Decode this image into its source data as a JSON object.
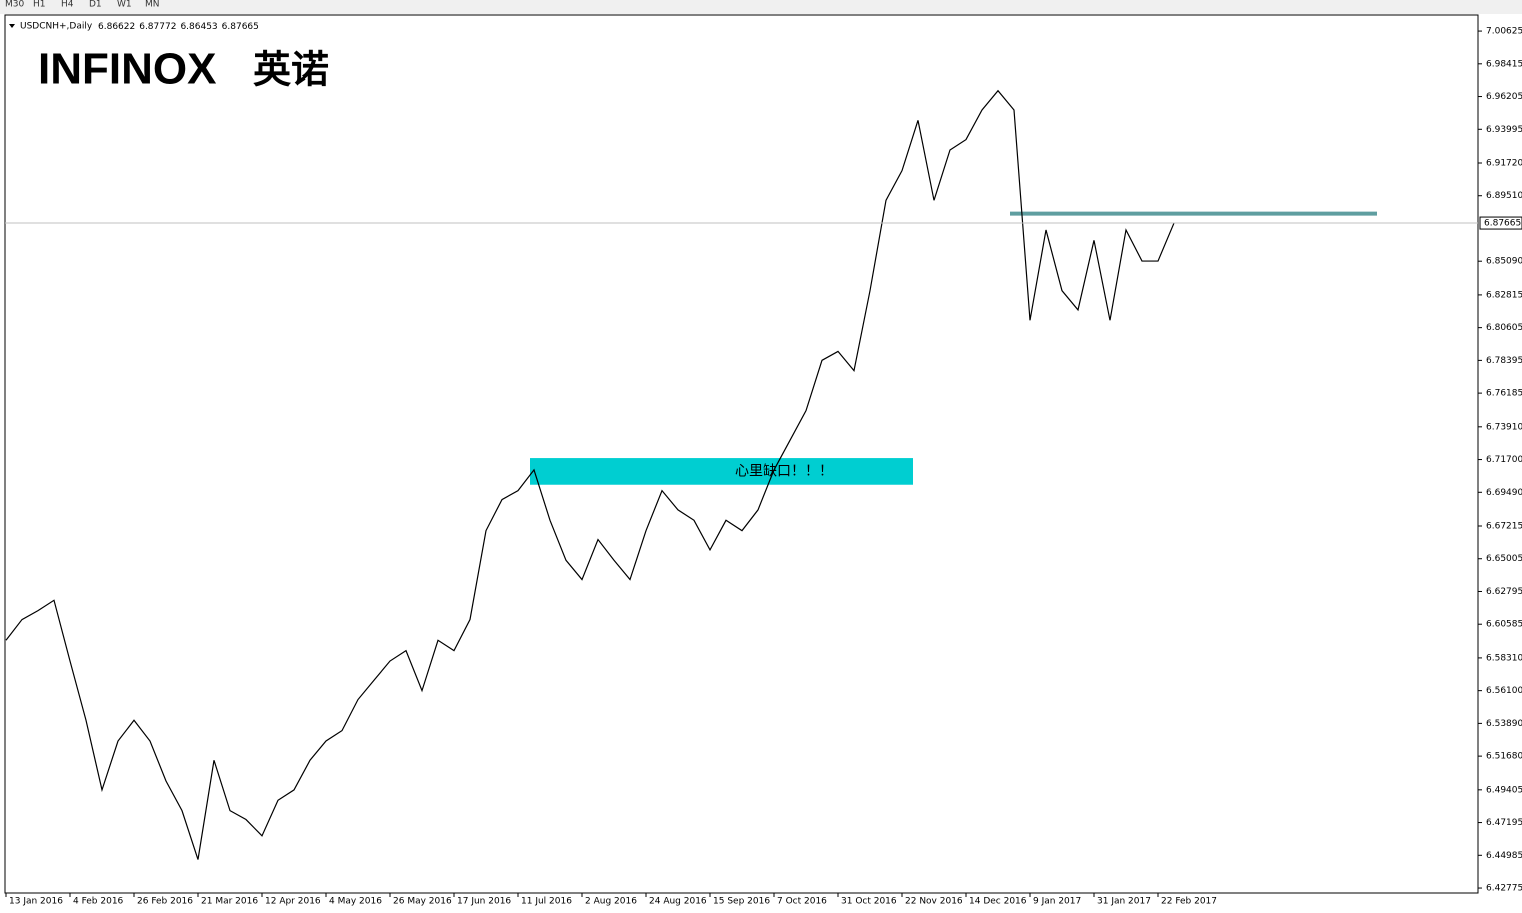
{
  "tabs": [
    "M30",
    "H1",
    "H4",
    "D1",
    "W1",
    "MN"
  ],
  "logo": {
    "brand": "INFINOX",
    "chinese": "英诺"
  },
  "chart_data": {
    "type": "line",
    "title": "USDCNH+,Daily",
    "ohlc": [
      6.86622,
      6.87772,
      6.86453,
      6.87665
    ],
    "categories": [
      "13 Jan 2016",
      null,
      null,
      null,
      "4 Feb 2016",
      null,
      null,
      null,
      "26 Feb 2016",
      null,
      null,
      null,
      "21 Mar 2016",
      null,
      null,
      null,
      "12 Apr 2016",
      null,
      null,
      null,
      "4 May 2016",
      null,
      null,
      null,
      "26 May 2016",
      null,
      null,
      null,
      "17 Jun 2016",
      null,
      null,
      null,
      "11 Jul 2016",
      null,
      null,
      null,
      "2 Aug 2016",
      null,
      null,
      null,
      "24 Aug 2016",
      null,
      null,
      null,
      "15 Sep 2016",
      null,
      null,
      null,
      "7 Oct 2016",
      null,
      null,
      null,
      "31 Oct 2016",
      null,
      null,
      null,
      "22 Nov 2016",
      null,
      null,
      null,
      "14 Dec 2016",
      null,
      null,
      null,
      "9 Jan 2017",
      null,
      null,
      null,
      "31 Jan 2017",
      null,
      null,
      null,
      "22 Feb 2017",
      null
    ],
    "series": [
      {
        "color": "#000000",
        "values": [
          6.595,
          6.609,
          6.615,
          6.622,
          6.581,
          6.541,
          6.494,
          6.527,
          6.541,
          6.527,
          6.5,
          6.48,
          6.447,
          6.514,
          6.48,
          6.474,
          6.463,
          6.487,
          6.494,
          6.514,
          6.527,
          6.534,
          6.555,
          6.568,
          6.581,
          6.588,
          6.561,
          6.595,
          6.588,
          6.609,
          6.669,
          6.69,
          6.696,
          6.71,
          6.676,
          6.649,
          6.636,
          6.663,
          6.649,
          6.636,
          6.669,
          6.696,
          6.683,
          6.676,
          6.656,
          6.676,
          6.669,
          6.683,
          6.71,
          6.73,
          6.75,
          6.784,
          6.79,
          6.777,
          6.831,
          6.892,
          6.912,
          6.946,
          6.892,
          6.926,
          6.933,
          6.953,
          6.966,
          6.953,
          6.811,
          6.872,
          6.831,
          6.818,
          6.865,
          6.811,
          6.872,
          6.851,
          6.851,
          6.87665
        ]
      }
    ],
    "zone": {
      "label": "心里缺口！！！",
      "ylim": [
        6.7,
        6.718
      ],
      "color": "#00ced1"
    },
    "level": {
      "value": 6.883,
      "color": "#5f9ea0"
    },
    "ylim": [
      6.4244,
      7.0171
    ],
    "yticks": [
      7.00625,
      6.98415,
      6.96205,
      6.93995,
      {
        "value": 6.9172,
        "label": "6.91720"
      },
      {
        "value": 6.8951,
        "label": "6.89510"
      },
      {
        "value": 6.8509,
        "label": "6.85090"
      },
      6.82815,
      6.80605,
      6.78395,
      6.76185,
      {
        "value": 6.7391,
        "label": "6.73910"
      },
      {
        "value": 6.717,
        "label": "6.71700"
      },
      {
        "value": 6.6949,
        "label": "6.69490"
      },
      6.67215,
      6.65005,
      6.62795,
      6.60585,
      {
        "value": 6.5831,
        "label": "6.58310"
      },
      {
        "value": 6.561,
        "label": "6.56100"
      },
      {
        "value": 6.5389,
        "label": "6.53890"
      },
      {
        "value": 6.5168,
        "label": "6.51680"
      },
      6.49405,
      6.47195,
      6.44985,
      6.42775
    ]
  }
}
